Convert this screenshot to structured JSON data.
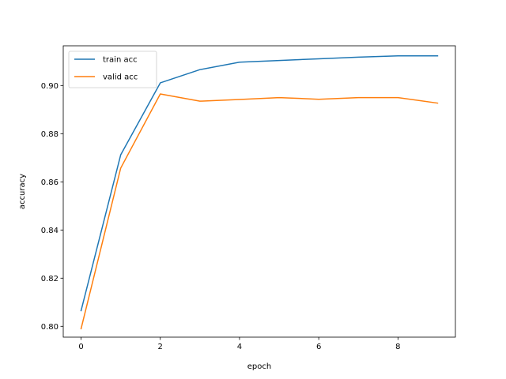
{
  "chart_data": {
    "type": "line",
    "xlabel": "epoch",
    "ylabel": "accuracy",
    "xlim": [
      -0.45,
      9.45
    ],
    "ylim": [
      0.7955,
      0.9165
    ],
    "xticks": [
      0,
      2,
      4,
      6,
      8
    ],
    "yticks": [
      0.8,
      0.82,
      0.84,
      0.86,
      0.88,
      0.9
    ],
    "xtick_labels": [
      "0",
      "2",
      "4",
      "6",
      "8"
    ],
    "ytick_labels": [
      "0.80",
      "0.82",
      "0.84",
      "0.86",
      "0.88",
      "0.90"
    ],
    "x": [
      0,
      1,
      2,
      3,
      4,
      5,
      6,
      7,
      8,
      9
    ],
    "series": [
      {
        "name": "train acc",
        "color": "#1f77b4",
        "values": [
          0.8065,
          0.8712,
          0.9011,
          0.9066,
          0.9097,
          0.9104,
          0.9111,
          0.9118,
          0.9123,
          0.9123
        ]
      },
      {
        "name": "valid acc",
        "color": "#ff7f0e",
        "values": [
          0.799,
          0.8657,
          0.8965,
          0.8935,
          0.8942,
          0.895,
          0.8943,
          0.895,
          0.895,
          0.8927
        ]
      }
    ],
    "grid": false,
    "legend_position": "upper-left"
  }
}
